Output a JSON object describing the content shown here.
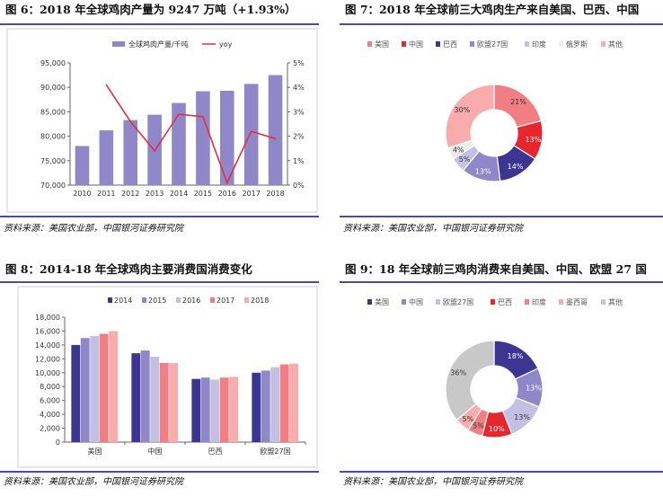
{
  "panels": [
    {
      "title": "图 6：2018 年全球鸡肉产量为 9247 万吨（+1.93%）",
      "source": "资料来源：美国农业部，中国银河证券研究院",
      "chart_data": {
        "type": "bar",
        "categories": [
          "2010",
          "2011",
          "2012",
          "2013",
          "2014",
          "2015",
          "2016",
          "2017",
          "2018"
        ],
        "series": [
          {
            "name": "全球鸡肉产量/千吨",
            "type": "bar",
            "axis": "left",
            "color": "#8f87c7",
            "values": [
              78000,
              81200,
              83300,
              84400,
              86800,
              89200,
              89300,
              90700,
              92500
            ]
          },
          {
            "name": "yoy",
            "type": "line",
            "axis": "right",
            "color": "#e0303a",
            "values": [
              null,
              4.1,
              2.6,
              1.4,
              2.9,
              2.8,
              0.1,
              2.2,
              1.9
            ]
          }
        ],
        "ylim": [
          70000,
          95000
        ],
        "yticks": [
          "70,000",
          "75,000",
          "80,000",
          "85,000",
          "90,000",
          "95,000"
        ],
        "y2lim": [
          0,
          5
        ],
        "y2ticks": [
          "0%",
          "1%",
          "2%",
          "3%",
          "4%",
          "5%"
        ],
        "legend": "top-center"
      }
    },
    {
      "title": "图 7：2018 年全球前三大鸡肉生产来自美国、巴西、中国",
      "source": "资料来源：美国农业部，中国银河证券研究院",
      "chart_data": {
        "type": "pie",
        "donut": true,
        "legend": "top",
        "labels": [
          "美国",
          "中国",
          "巴西",
          "欧盟27国",
          "印度",
          "俄罗斯",
          "其他"
        ],
        "values": [
          21,
          13,
          14,
          13,
          5,
          4,
          30
        ],
        "value_labels": [
          "21%",
          "13%",
          "14%",
          "13%",
          "5%",
          "4%",
          "30%"
        ],
        "colors": [
          "#f07e82",
          "#e8262e",
          "#3d3592",
          "#8f87c7",
          "#c4c0e4",
          "#ececec",
          "#f8acab"
        ]
      }
    },
    {
      "title": "图 8：2014-18 年全球鸡肉主要消费国消费变化",
      "source": "资料来源：美国农业部，中国银河证券研究院",
      "chart_data": {
        "type": "bar",
        "categories": [
          "美国",
          "中国",
          "巴西",
          "欧盟27国"
        ],
        "series": [
          {
            "name": "2014",
            "color": "#3d3592",
            "values": [
              14000,
              12800,
              9100,
              10000
            ]
          },
          {
            "name": "2015",
            "color": "#8f87c7",
            "values": [
              15000,
              13200,
              9300,
              10300
            ]
          },
          {
            "name": "2016",
            "color": "#c4c0e4",
            "values": [
              15300,
              12300,
              9000,
              10800
            ]
          },
          {
            "name": "2017",
            "color": "#f07e82",
            "values": [
              15600,
              11400,
              9300,
              11200
            ]
          },
          {
            "name": "2018",
            "color": "#f8acab",
            "values": [
              16000,
              11400,
              9400,
              11300
            ]
          }
        ],
        "ylim": [
          0,
          18000
        ],
        "yticks": [
          "0",
          "2,000",
          "4,000",
          "6,000",
          "8,000",
          "10,000",
          "12,000",
          "14,000",
          "16,000",
          "18,000"
        ],
        "legend": "top-center"
      }
    },
    {
      "title": "图 9：18 年全球前三鸡肉消费来自美国、中国、欧盟 27 国",
      "source": "资料来源：美国农业部，中国银河证券研究院",
      "chart_data": {
        "type": "pie",
        "donut": true,
        "legend": "top",
        "labels": [
          "美国",
          "中国",
          "欧盟27国",
          "巴西",
          "印度",
          "墨西哥",
          "其他"
        ],
        "values": [
          18,
          13,
          13,
          10,
          5,
          5,
          36
        ],
        "value_labels": [
          "18%",
          "13%",
          "13%",
          "10%",
          "5%",
          "5%",
          "36%"
        ],
        "colors": [
          "#3d3592",
          "#8f87c7",
          "#c4c0e4",
          "#e8262e",
          "#f07e82",
          "#f8acab",
          "#c8c8c8"
        ]
      }
    }
  ]
}
